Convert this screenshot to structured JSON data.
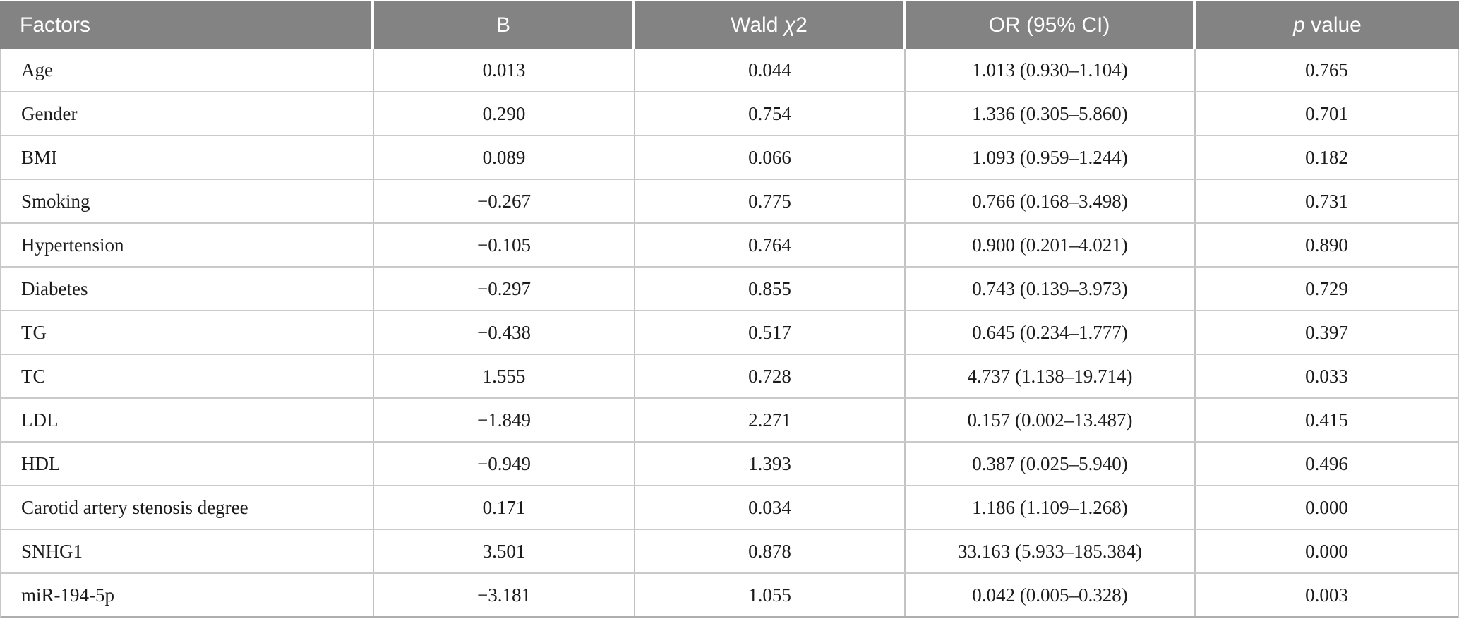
{
  "colors": {
    "header_background": "#838383",
    "header_text": "#ffffff",
    "row_divider": "#cacaca",
    "column_divider": "#c3c3c3",
    "body_text": "#1b1b1b"
  },
  "table": {
    "title_semantic": "Multivariate logistic regression factors table",
    "header": {
      "factors": "Factors",
      "b": "B",
      "wald_prefix": "Wald ",
      "wald_chi": "χ",
      "wald_suffix": "2",
      "or": "OR (95% CI)",
      "p_italic": "p",
      "p_rest": " value"
    },
    "row_keys": [
      "factor",
      "b",
      "wald",
      "or_ci",
      "p"
    ],
    "rows": [
      {
        "factor": "Age",
        "b": "0.013",
        "wald": "0.044",
        "or_ci": "1.013 (0.930–1.104)",
        "p": "0.765"
      },
      {
        "factor": "Gender",
        "b": "0.290",
        "wald": "0.754",
        "or_ci": "1.336 (0.305–5.860)",
        "p": "0.701"
      },
      {
        "factor": "BMI",
        "b": "0.089",
        "wald": "0.066",
        "or_ci": "1.093 (0.959–1.244)",
        "p": "0.182"
      },
      {
        "factor": "Smoking",
        "b": "−0.267",
        "wald": "0.775",
        "or_ci": "0.766 (0.168–3.498)",
        "p": "0.731"
      },
      {
        "factor": "Hypertension",
        "b": "−0.105",
        "wald": "0.764",
        "or_ci": "0.900 (0.201–4.021)",
        "p": "0.890"
      },
      {
        "factor": "Diabetes",
        "b": "−0.297",
        "wald": "0.855",
        "or_ci": "0.743 (0.139–3.973)",
        "p": "0.729"
      },
      {
        "factor": "TG",
        "b": "−0.438",
        "wald": "0.517",
        "or_ci": "0.645 (0.234–1.777)",
        "p": "0.397"
      },
      {
        "factor": "TC",
        "b": "1.555",
        "wald": "0.728",
        "or_ci": "4.737 (1.138–19.714)",
        "p": "0.033"
      },
      {
        "factor": "LDL",
        "b": "−1.849",
        "wald": "2.271",
        "or_ci": "0.157 (0.002–13.487)",
        "p": "0.415"
      },
      {
        "factor": "HDL",
        "b": "−0.949",
        "wald": "1.393",
        "or_ci": "0.387 (0.025–5.940)",
        "p": "0.496"
      },
      {
        "factor": "Carotid artery stenosis degree",
        "b": "0.171",
        "wald": "0.034",
        "or_ci": "1.186 (1.109–1.268)",
        "p": "0.000"
      },
      {
        "factor": "SNHG1",
        "b": "3.501",
        "wald": "0.878",
        "or_ci": "33.163 (5.933–185.384)",
        "p": "0.000"
      },
      {
        "factor": "miR-194-5p",
        "b": "−3.181",
        "wald": "1.055",
        "or_ci": "0.042 (0.005–0.328)",
        "p": "0.003"
      }
    ]
  }
}
